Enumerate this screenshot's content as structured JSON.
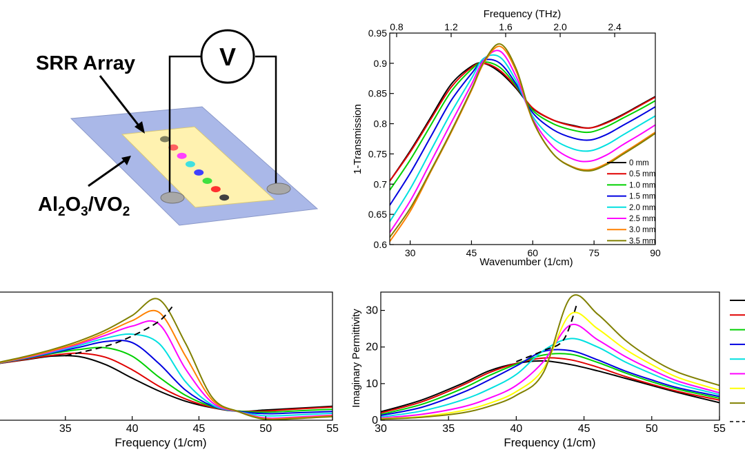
{
  "schematic": {
    "srr_label": "SRR Array",
    "substrate_label_parts": [
      "Al",
      "2",
      "O",
      "3",
      "/VO",
      "2"
    ],
    "voltmeter_symbol": "V",
    "dot_colors": [
      "#808060",
      "#ff6060",
      "#ff40ff",
      "#40e0e0",
      "#4040ff",
      "#40e040",
      "#ff3030",
      "#404040"
    ],
    "substrate_color": "#aab8e8",
    "array_color": "#fff2b0",
    "contact_color": "#a8a8a8"
  },
  "chart_data": [
    {
      "type": "line",
      "title": "",
      "xlabel": "Wavenumber (1/cm)",
      "ylabel": "1-Transmission",
      "top_xlabel": "Frequency (THz)",
      "xlim": [
        25,
        90
      ],
      "ylim": [
        0.6,
        0.95
      ],
      "xticks": [
        30,
        45,
        60,
        75,
        90
      ],
      "yticks": [
        0.6,
        0.65,
        0.7,
        0.75,
        0.8,
        0.85,
        0.9,
        0.95
      ],
      "ytick_labels": [
        "0.6",
        "0.65",
        "0.7",
        "0.75",
        "0.8",
        "0.85",
        "0.9",
        "0.95"
      ],
      "top_xticks": [
        0.8,
        1.2,
        1.6,
        2.0,
        2.4
      ],
      "top_xtick_labels": [
        "0.8",
        "1.2",
        "1.6",
        "2.0",
        "2.4"
      ],
      "legend_position": "bottom-right",
      "series": [
        {
          "name": "0 mm",
          "color": "#000000",
          "x": [
            25,
            30,
            35,
            40,
            45,
            48,
            52,
            56,
            60,
            65,
            70,
            74,
            78,
            82,
            86,
            90
          ],
          "y": [
            0.705,
            0.755,
            0.81,
            0.865,
            0.895,
            0.9,
            0.885,
            0.858,
            0.825,
            0.806,
            0.797,
            0.793,
            0.802,
            0.815,
            0.83,
            0.845
          ]
        },
        {
          "name": "0.5 mm",
          "color": "#e00000",
          "x": [
            25,
            30,
            35,
            40,
            45,
            48,
            52,
            56,
            60,
            65,
            70,
            74,
            78,
            82,
            86,
            90
          ],
          "y": [
            0.705,
            0.753,
            0.807,
            0.86,
            0.893,
            0.9,
            0.888,
            0.86,
            0.826,
            0.806,
            0.796,
            0.793,
            0.801,
            0.814,
            0.829,
            0.844
          ]
        },
        {
          "name": "1.0 mm",
          "color": "#00d000",
          "x": [
            25,
            30,
            35,
            40,
            45,
            48,
            52,
            56,
            60,
            65,
            70,
            74,
            78,
            82,
            86,
            90
          ],
          "y": [
            0.69,
            0.74,
            0.797,
            0.853,
            0.89,
            0.902,
            0.893,
            0.862,
            0.822,
            0.8,
            0.789,
            0.786,
            0.795,
            0.809,
            0.823,
            0.838
          ]
        },
        {
          "name": "1.5 mm",
          "color": "#0000e0",
          "x": [
            25,
            30,
            35,
            40,
            45,
            48,
            52,
            56,
            60,
            65,
            70,
            74,
            78,
            82,
            86,
            90
          ],
          "y": [
            0.665,
            0.718,
            0.778,
            0.838,
            0.883,
            0.905,
            0.9,
            0.865,
            0.818,
            0.79,
            0.776,
            0.773,
            0.782,
            0.797,
            0.812,
            0.828
          ]
        },
        {
          "name": "2.0 mm",
          "color": "#00e0e0",
          "x": [
            25,
            30,
            35,
            40,
            45,
            48,
            52,
            56,
            60,
            65,
            70,
            74,
            78,
            82,
            86,
            90
          ],
          "y": [
            0.638,
            0.692,
            0.755,
            0.818,
            0.875,
            0.908,
            0.91,
            0.87,
            0.812,
            0.775,
            0.758,
            0.755,
            0.765,
            0.781,
            0.797,
            0.813
          ]
        },
        {
          "name": "2.5 mm",
          "color": "#ff00ff",
          "x": [
            25,
            30,
            35,
            40,
            45,
            48,
            52,
            56,
            60,
            65,
            70,
            74,
            78,
            82,
            86,
            90
          ],
          "y": [
            0.62,
            0.672,
            0.736,
            0.801,
            0.865,
            0.905,
            0.92,
            0.877,
            0.808,
            0.762,
            0.741,
            0.738,
            0.748,
            0.765,
            0.781,
            0.798
          ]
        },
        {
          "name": "3.0 mm",
          "color": "#ff8000",
          "x": [
            25,
            30,
            35,
            40,
            45,
            48,
            52,
            56,
            60,
            65,
            70,
            74,
            78,
            82,
            86,
            90
          ],
          "y": [
            0.605,
            0.655,
            0.72,
            0.785,
            0.855,
            0.9,
            0.928,
            0.886,
            0.805,
            0.75,
            0.728,
            0.724,
            0.734,
            0.751,
            0.768,
            0.786
          ]
        },
        {
          "name": "3.5 mm",
          "color": "#808000",
          "x": [
            25,
            30,
            35,
            40,
            45,
            48,
            52,
            56,
            60,
            65,
            70,
            74,
            78,
            82,
            86,
            90
          ],
          "y": [
            0.612,
            0.66,
            0.722,
            0.787,
            0.857,
            0.902,
            0.932,
            0.89,
            0.806,
            0.75,
            0.727,
            0.722,
            0.732,
            0.749,
            0.766,
            0.784
          ]
        }
      ]
    },
    {
      "type": "line",
      "title": "",
      "xlabel": "Frequency (1/cm)",
      "ylabel": "",
      "xlim": [
        30,
        55
      ],
      "ylim": [
        0,
        35
      ],
      "xticks": [
        35,
        40,
        45,
        50,
        55
      ],
      "dashed_guide": {
        "x": [
          35,
          38,
          40,
          42,
          43
        ],
        "y": [
          17.6,
          20.2,
          23,
          27,
          31
        ]
      },
      "series": [
        {
          "color": "#000000",
          "x": [
            30,
            32,
            34,
            36,
            38,
            40,
            42,
            44,
            46,
            48,
            50,
            52,
            55
          ],
          "y": [
            15.5,
            16.5,
            17.5,
            17.4,
            15.2,
            11.5,
            8,
            5.2,
            3.4,
            2.4,
            2.8,
            3.2,
            3.8
          ]
        },
        {
          "color": "#e00000",
          "x": [
            30,
            32,
            34,
            36,
            38,
            40,
            42,
            44,
            46,
            48,
            50,
            52,
            55
          ],
          "y": [
            15.5,
            16.6,
            17.7,
            18.3,
            17.2,
            13.8,
            9.3,
            5.8,
            3.5,
            2.5,
            2.5,
            3,
            3.6
          ]
        },
        {
          "color": "#00d000",
          "x": [
            30,
            32,
            34,
            36,
            38,
            40,
            42,
            44,
            46,
            48,
            50,
            52,
            55
          ],
          "y": [
            15.6,
            16.8,
            18.2,
            19.3,
            19.8,
            17.5,
            11.8,
            6.8,
            3.7,
            2.5,
            2.2,
            2.5,
            3
          ]
        },
        {
          "color": "#0000e0",
          "x": [
            30,
            32,
            34,
            36,
            38,
            40,
            42,
            44,
            46,
            48,
            50,
            52,
            55
          ],
          "y": [
            15.6,
            16.9,
            18.4,
            19.9,
            21.5,
            21.2,
            15.5,
            8.2,
            3.9,
            2.4,
            1.8,
            2,
            2.4
          ]
        },
        {
          "color": "#00e0e0",
          "x": [
            30,
            32,
            34,
            36,
            38,
            40,
            42,
            44,
            46,
            48,
            50,
            52,
            55
          ],
          "y": [
            15.6,
            17,
            18.6,
            20.4,
            22.4,
            23.5,
            21,
            10.5,
            4.2,
            2.3,
            1.2,
            1.4,
            1.9
          ]
        },
        {
          "color": "#ff00ff",
          "x": [
            30,
            32,
            34,
            36,
            38,
            40,
            42,
            44,
            46,
            48,
            50,
            52,
            55
          ],
          "y": [
            15.7,
            17.1,
            18.8,
            20.8,
            23.2,
            25.7,
            26.3,
            14,
            4.8,
            2.3,
            0.6,
            0.8,
            1.4
          ]
        },
        {
          "color": "#ff8000",
          "x": [
            30,
            32,
            34,
            36,
            38,
            40,
            42,
            44,
            46,
            48,
            50,
            52,
            55
          ],
          "y": [
            15.7,
            17.2,
            19,
            21.1,
            23.9,
            27.2,
            29.5,
            17.5,
            5.5,
            2.3,
            0.4,
            0.6,
            1.2
          ]
        },
        {
          "color": "#808000",
          "x": [
            30,
            32,
            34,
            36,
            38,
            40,
            42,
            44,
            46,
            48,
            50,
            52,
            55
          ],
          "y": [
            15.8,
            17.4,
            19.3,
            21.6,
            24.6,
            28.6,
            33,
            21,
            6.2,
            2.3,
            0.2,
            0.4,
            1
          ]
        }
      ]
    },
    {
      "type": "line",
      "title": "",
      "xlabel": "Frequency (1/cm)",
      "ylabel": "Imaginary Permittivity",
      "xlim": [
        30,
        55
      ],
      "ylim": [
        0,
        35
      ],
      "xticks": [
        30,
        35,
        40,
        45,
        50,
        55
      ],
      "yticks": [
        0,
        10,
        20,
        30
      ],
      "dashed_guide": {
        "x": [
          40,
          42,
          43.5,
          44.5
        ],
        "y": [
          16,
          19,
          22,
          32
        ]
      },
      "series": [
        {
          "color": "#000000",
          "x": [
            30,
            33,
            36,
            38,
            40,
            42,
            44,
            46,
            48,
            50,
            52,
            55
          ],
          "y": [
            2.3,
            5.5,
            10,
            13.5,
            15.5,
            16.2,
            15.2,
            13.5,
            11.5,
            9.5,
            7.5,
            4.8
          ]
        },
        {
          "color": "#e00000",
          "x": [
            30,
            33,
            36,
            38,
            40,
            42,
            44,
            46,
            48,
            50,
            52,
            55
          ],
          "y": [
            2,
            5,
            9.5,
            13,
            15.5,
            17,
            16.5,
            14.5,
            12,
            9.8,
            7.8,
            5.5
          ]
        },
        {
          "color": "#00d000",
          "x": [
            30,
            33,
            36,
            38,
            40,
            42,
            44,
            46,
            48,
            50,
            52,
            55
          ],
          "y": [
            1.6,
            4.3,
            8.6,
            12.2,
            15.3,
            17.8,
            18,
            15.8,
            13,
            10.5,
            8.4,
            6
          ]
        },
        {
          "color": "#0000e0",
          "x": [
            30,
            33,
            36,
            38,
            40,
            42,
            44,
            46,
            48,
            50,
            52,
            55
          ],
          "y": [
            1.3,
            3.5,
            7.5,
            11,
            14.8,
            18.8,
            19,
            16.5,
            13.5,
            11,
            8.8,
            6.5
          ]
        },
        {
          "color": "#00e0e0",
          "x": [
            30,
            33,
            36,
            38,
            40,
            42,
            44,
            46,
            48,
            50,
            52,
            55
          ],
          "y": [
            0.9,
            2.5,
            5.5,
            8.5,
            12.5,
            19,
            22.3,
            20,
            16,
            12.7,
            9.8,
            7
          ]
        },
        {
          "color": "#ff00ff",
          "x": [
            30,
            33,
            36,
            38,
            40,
            42,
            44,
            46,
            48,
            50,
            52,
            55
          ],
          "y": [
            0.6,
            1.6,
            3.6,
            6,
            9.5,
            16,
            26,
            22,
            17.5,
            13.8,
            10.6,
            7.5
          ]
        },
        {
          "color": "#ffff00",
          "x": [
            30,
            33,
            36,
            38,
            40,
            42,
            44,
            46,
            48,
            50,
            52,
            55
          ],
          "y": [
            0.4,
            1,
            2.6,
            4.6,
            7.8,
            14,
            29,
            25,
            19.5,
            15.2,
            11.6,
            8.2
          ]
        },
        {
          "color": "#808000",
          "x": [
            30,
            33,
            36,
            38,
            40,
            42,
            44,
            46,
            48,
            50,
            52,
            55
          ],
          "y": [
            0.3,
            0.8,
            2,
            3.8,
            6.8,
            13,
            33.5,
            29,
            22,
            16.8,
            13,
            9.5
          ]
        }
      ]
    }
  ]
}
